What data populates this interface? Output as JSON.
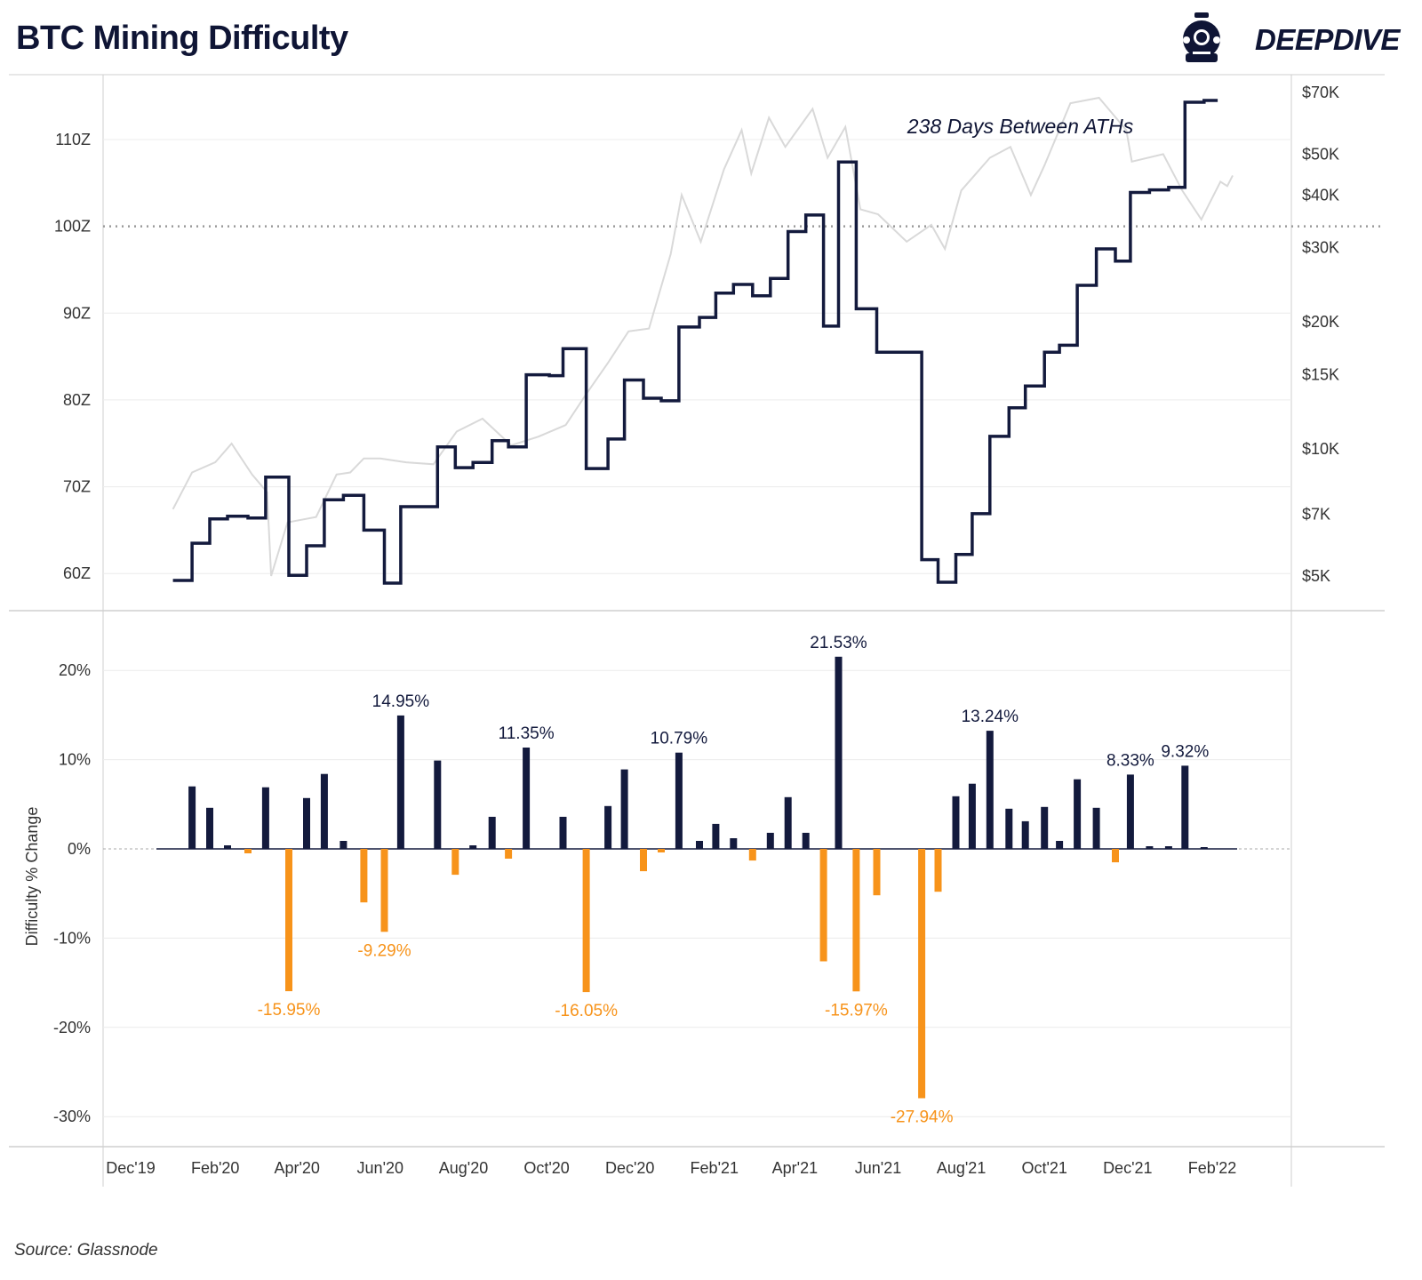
{
  "title": "BTC Mining Difficulty",
  "logo": {
    "text": "DEEPDIVE",
    "icon": "diving-helmet-icon"
  },
  "source": "Source: Glassnode",
  "colors": {
    "navy": "#131a3d",
    "orange": "#f7931a",
    "price": "#d9d9d9",
    "grid": "#ececec"
  },
  "chart_data": [
    {
      "type": "line",
      "series": [
        {
          "name": "",
          "role": "difficulty",
          "axis": "left",
          "style": "step"
        },
        {
          "name": "",
          "role": "price",
          "axis": "right",
          "scale": "log"
        }
      ],
      "x_range": [
        "2019-12-01",
        "2022-04-01"
      ],
      "x_ticks": [
        "Dec'19",
        "Feb'20",
        "Apr'20",
        "Jun'20",
        "Aug'20",
        "Oct'20",
        "Dec'20",
        "Feb'21",
        "Apr'21",
        "Jun'21",
        "Aug'21",
        "Oct'21",
        "Dec'21",
        "Feb'22"
      ],
      "x_tick_dates": [
        "2019-12-01",
        "2020-02-01",
        "2020-04-01",
        "2020-06-01",
        "2020-08-01",
        "2020-10-01",
        "2020-12-01",
        "2021-02-01",
        "2021-04-01",
        "2021-06-01",
        "2021-08-01",
        "2021-10-01",
        "2021-12-01",
        "2022-02-01"
      ],
      "left_axis": {
        "ticks": [
          "60Z",
          "70Z",
          "80Z",
          "90Z",
          "100Z",
          "110Z"
        ],
        "tick_values": [
          60,
          70,
          80,
          90,
          100,
          110
        ],
        "ylim": [
          55.9,
          115.3
        ]
      },
      "right_axis": {
        "scale": "log",
        "ticks": [
          "$5K",
          "$7K",
          "$10K",
          "$15K",
          "$20K",
          "$30K",
          "$40K",
          "$50K",
          "$70K"
        ],
        "tick_values": [
          5000,
          7000,
          10000,
          15000,
          20000,
          30000,
          40000,
          50000,
          70000
        ]
      },
      "reference_line": {
        "value": 100,
        "style": "dotted"
      },
      "annotation": "238 Days Between ATHs",
      "difficulty": [
        [
          "2020-01-01",
          59.2
        ],
        [
          "2020-01-15",
          63.5
        ],
        [
          "2020-01-28",
          66.3
        ],
        [
          "2020-02-10",
          66.6
        ],
        [
          "2020-02-25",
          66.4
        ],
        [
          "2020-03-09",
          71.1
        ],
        [
          "2020-03-26",
          59.8
        ],
        [
          "2020-04-08",
          63.2
        ],
        [
          "2020-04-21",
          68.5
        ],
        [
          "2020-05-05",
          69.0
        ],
        [
          "2020-05-20",
          65.0
        ],
        [
          "2020-06-04",
          58.9
        ],
        [
          "2020-06-16",
          67.7
        ],
        [
          "2020-07-13",
          74.6
        ],
        [
          "2020-07-26",
          72.2
        ],
        [
          "2020-08-08",
          72.8
        ],
        [
          "2020-08-22",
          75.3
        ],
        [
          "2020-09-03",
          74.6
        ],
        [
          "2020-09-16",
          82.9
        ],
        [
          "2020-10-03",
          82.8
        ],
        [
          "2020-10-13",
          85.9
        ],
        [
          "2020-10-30",
          72.1
        ],
        [
          "2020-11-15",
          75.5
        ],
        [
          "2020-11-27",
          82.3
        ],
        [
          "2020-12-11",
          80.2
        ],
        [
          "2020-12-24",
          79.9
        ],
        [
          "2021-01-06",
          88.4
        ],
        [
          "2021-01-21",
          89.5
        ],
        [
          "2021-02-02",
          92.3
        ],
        [
          "2021-02-15",
          93.3
        ],
        [
          "2021-03-01",
          92.0
        ],
        [
          "2021-03-14",
          94.0
        ],
        [
          "2021-03-27",
          99.4
        ],
        [
          "2021-04-09",
          101.3
        ],
        [
          "2021-04-22",
          88.5
        ],
        [
          "2021-05-03",
          107.4
        ],
        [
          "2021-05-16",
          90.5
        ],
        [
          "2021-05-31",
          85.5
        ],
        [
          "2021-07-03",
          61.6
        ],
        [
          "2021-07-15",
          59.0
        ],
        [
          "2021-07-28",
          62.2
        ],
        [
          "2021-08-09",
          66.9
        ],
        [
          "2021-08-22",
          75.8
        ],
        [
          "2021-09-05",
          79.1
        ],
        [
          "2021-09-17",
          81.6
        ],
        [
          "2021-10-01",
          85.5
        ],
        [
          "2021-10-12",
          86.3
        ],
        [
          "2021-10-25",
          93.2
        ],
        [
          "2021-11-08",
          97.4
        ],
        [
          "2021-11-22",
          96.0
        ],
        [
          "2021-12-03",
          103.9
        ],
        [
          "2021-12-17",
          104.2
        ],
        [
          "2021-12-31",
          104.5
        ],
        [
          "2022-01-12",
          114.3
        ],
        [
          "2022-01-26",
          114.5
        ],
        [
          "2022-02-05",
          114.5
        ]
      ],
      "price": [
        [
          "2020-01-01",
          7200
        ],
        [
          "2020-01-15",
          8800
        ],
        [
          "2020-02-01",
          9300
        ],
        [
          "2020-02-13",
          10300
        ],
        [
          "2020-02-28",
          8700
        ],
        [
          "2020-03-10",
          7900
        ],
        [
          "2020-03-13",
          5000
        ],
        [
          "2020-03-25",
          6700
        ],
        [
          "2020-04-15",
          6900
        ],
        [
          "2020-04-30",
          8700
        ],
        [
          "2020-05-10",
          8800
        ],
        [
          "2020-05-20",
          9500
        ],
        [
          "2020-06-01",
          9500
        ],
        [
          "2020-06-20",
          9300
        ],
        [
          "2020-07-10",
          9200
        ],
        [
          "2020-07-27",
          11000
        ],
        [
          "2020-08-15",
          11800
        ],
        [
          "2020-09-05",
          10200
        ],
        [
          "2020-09-25",
          10700
        ],
        [
          "2020-10-15",
          11400
        ],
        [
          "2020-10-30",
          13500
        ],
        [
          "2020-11-15",
          16000
        ],
        [
          "2020-11-30",
          19000
        ],
        [
          "2020-12-15",
          19300
        ],
        [
          "2020-12-31",
          29000
        ],
        [
          "2021-01-08",
          40000
        ],
        [
          "2021-01-22",
          31000
        ],
        [
          "2021-02-08",
          46000
        ],
        [
          "2021-02-21",
          57000
        ],
        [
          "2021-02-28",
          45000
        ],
        [
          "2021-03-13",
          61000
        ],
        [
          "2021-03-25",
          52000
        ],
        [
          "2021-04-14",
          64000
        ],
        [
          "2021-04-25",
          49000
        ],
        [
          "2021-05-08",
          58000
        ],
        [
          "2021-05-19",
          37000
        ],
        [
          "2021-06-01",
          36000
        ],
        [
          "2021-06-22",
          31000
        ],
        [
          "2021-07-10",
          34000
        ],
        [
          "2021-07-20",
          29800
        ],
        [
          "2021-08-01",
          41000
        ],
        [
          "2021-08-22",
          49000
        ],
        [
          "2021-09-06",
          52000
        ],
        [
          "2021-09-21",
          40000
        ],
        [
          "2021-10-01",
          47000
        ],
        [
          "2021-10-20",
          66000
        ],
        [
          "2021-11-10",
          68000
        ],
        [
          "2021-11-30",
          57000
        ],
        [
          "2021-12-04",
          48000
        ],
        [
          "2021-12-27",
          50000
        ],
        [
          "2022-01-10",
          41000
        ],
        [
          "2022-01-24",
          35000
        ],
        [
          "2022-02-07",
          43000
        ],
        [
          "2022-02-12",
          42000
        ],
        [
          "2022-02-16",
          44500
        ]
      ]
    },
    {
      "type": "bar",
      "series": [
        {
          "name": "",
          "role": "difficulty-change"
        }
      ],
      "ylabel": "Difficulty % Change",
      "ylim": [
        -33,
        24
      ],
      "y_ticks": [
        "-30%",
        "-20%",
        "-10%",
        "0%",
        "10%",
        "20%"
      ],
      "y_tick_values": [
        -30,
        -20,
        -10,
        0,
        10,
        20
      ],
      "bars": [
        [
          "2020-01-15",
          7.0,
          ""
        ],
        [
          "2020-01-28",
          4.6,
          ""
        ],
        [
          "2020-02-10",
          0.4,
          ""
        ],
        [
          "2020-02-25",
          -0.5,
          ""
        ],
        [
          "2020-03-09",
          6.9,
          ""
        ],
        [
          "2020-03-26",
          -15.95,
          "-15.95%"
        ],
        [
          "2020-04-08",
          5.7,
          ""
        ],
        [
          "2020-04-21",
          8.4,
          ""
        ],
        [
          "2020-05-05",
          0.9,
          ""
        ],
        [
          "2020-05-20",
          -6.0,
          ""
        ],
        [
          "2020-06-04",
          -9.29,
          "-9.29%"
        ],
        [
          "2020-06-16",
          14.95,
          "14.95%"
        ],
        [
          "2020-07-13",
          9.9,
          ""
        ],
        [
          "2020-07-26",
          -2.9,
          ""
        ],
        [
          "2020-08-08",
          0.4,
          ""
        ],
        [
          "2020-08-22",
          3.6,
          ""
        ],
        [
          "2020-09-03",
          -1.1,
          ""
        ],
        [
          "2020-09-16",
          11.35,
          "11.35%"
        ],
        [
          "2020-10-13",
          3.6,
          ""
        ],
        [
          "2020-10-30",
          -16.05,
          "-16.05%"
        ],
        [
          "2020-11-15",
          4.8,
          ""
        ],
        [
          "2020-11-27",
          8.9,
          ""
        ],
        [
          "2020-12-11",
          -2.5,
          ""
        ],
        [
          "2020-12-24",
          -0.4,
          ""
        ],
        [
          "2021-01-06",
          10.79,
          "10.79%"
        ],
        [
          "2021-01-21",
          0.9,
          ""
        ],
        [
          "2021-02-02",
          2.8,
          ""
        ],
        [
          "2021-02-15",
          1.2,
          ""
        ],
        [
          "2021-03-01",
          -1.3,
          ""
        ],
        [
          "2021-03-14",
          1.8,
          ""
        ],
        [
          "2021-03-27",
          5.8,
          ""
        ],
        [
          "2021-04-09",
          1.8,
          ""
        ],
        [
          "2021-04-22",
          -12.6,
          ""
        ],
        [
          "2021-05-03",
          21.53,
          "21.53%"
        ],
        [
          "2021-05-16",
          -15.97,
          "-15.97%"
        ],
        [
          "2021-05-31",
          -5.2,
          ""
        ],
        [
          "2021-07-03",
          -27.94,
          "-27.94%"
        ],
        [
          "2021-07-15",
          -4.8,
          ""
        ],
        [
          "2021-07-28",
          5.9,
          ""
        ],
        [
          "2021-08-09",
          7.3,
          ""
        ],
        [
          "2021-08-22",
          13.24,
          "13.24%"
        ],
        [
          "2021-09-05",
          4.5,
          ""
        ],
        [
          "2021-09-17",
          3.1,
          ""
        ],
        [
          "2021-10-01",
          4.7,
          ""
        ],
        [
          "2021-10-12",
          0.9,
          ""
        ],
        [
          "2021-10-25",
          7.8,
          ""
        ],
        [
          "2021-11-08",
          4.6,
          ""
        ],
        [
          "2021-11-22",
          -1.5,
          ""
        ],
        [
          "2021-12-03",
          8.33,
          "8.33%"
        ],
        [
          "2021-12-17",
          0.3,
          ""
        ],
        [
          "2021-12-31",
          0.3,
          ""
        ],
        [
          "2022-01-12",
          9.32,
          "9.32%"
        ],
        [
          "2022-01-26",
          0.2,
          ""
        ]
      ]
    }
  ]
}
